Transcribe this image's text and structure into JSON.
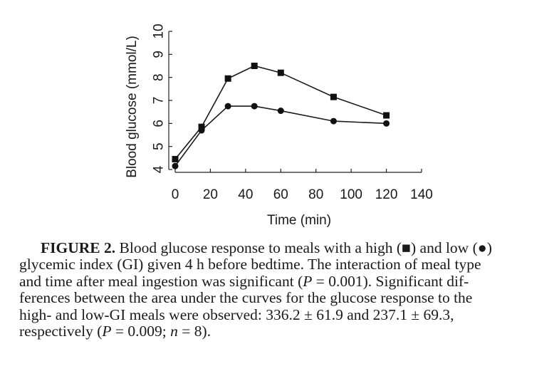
{
  "chart_data": {
    "type": "line",
    "xlabel": "Time (min)",
    "ylabel": "Blood glucose (mmol/L)",
    "xlim": [
      0,
      140
    ],
    "ylim": [
      4,
      10
    ],
    "x_ticks": [
      "0",
      "20",
      "40",
      "60",
      "80",
      "100",
      "120",
      "140"
    ],
    "y_ticks": [
      "4",
      "5",
      "6",
      "7",
      "8",
      "9",
      "10"
    ],
    "grid": false,
    "legend": "none",
    "series": [
      {
        "marker": "square",
        "x": [
          0,
          15,
          30,
          45,
          60,
          90,
          120
        ],
        "y": [
          4.45,
          5.85,
          7.95,
          8.5,
          8.2,
          7.15,
          6.35
        ]
      },
      {
        "marker": "circle",
        "x": [
          0,
          15,
          30,
          45,
          60,
          90,
          120
        ],
        "y": [
          4.15,
          5.7,
          6.75,
          6.75,
          6.55,
          6.1,
          6.0
        ]
      }
    ]
  },
  "caption": {
    "label": "FIGURE 2.",
    "line1_text": " Blood glucose response to meals with a high (",
    "high_symbol": "■",
    "line1_mid": ") and low (",
    "low_symbol": "●",
    "line1_end": ")",
    "line2": "glycemic index (GI) given 4 h before bedtime. The interaction of meal type",
    "line3_pre": "and time after meal ingestion was significant (",
    "line3_p": "P",
    "line3_post": " = 0.001). Significant dif-",
    "line4": "ferences between the area under the curves for the glucose response to the",
    "line5": "high- and low-GI meals were observed: 336.2 ± 61.9 and 237.1 ± 69.3,",
    "line6_pre": "respectively (",
    "line6_p": "P",
    "line6_mid": " = 0.009; ",
    "line6_n": "n",
    "line6_post": " = 8)."
  }
}
